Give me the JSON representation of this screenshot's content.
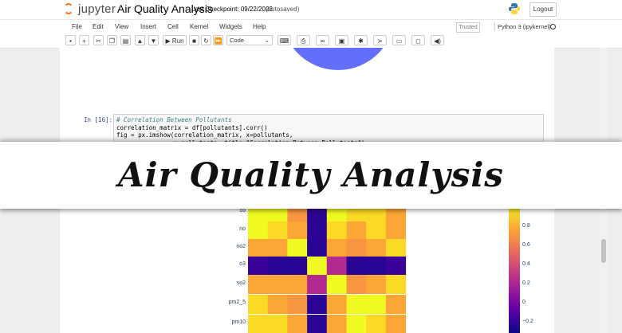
{
  "header": {
    "logo_text": "jupyter",
    "notebook_title": "Air Quality Analysis",
    "checkpoint": "Last Checkpoint: 09/22/2023",
    "autosave": "(autosaved)",
    "logout_label": "Logout"
  },
  "menu": {
    "items": [
      "File",
      "Edit",
      "View",
      "Insert",
      "Cell",
      "Kernel",
      "Widgets",
      "Help"
    ],
    "trusted_label": "Trusted",
    "kernel_label": "Python 3 (ipykernel)"
  },
  "toolbar": {
    "run_label": "Run",
    "cell_type": "Code"
  },
  "cell": {
    "prompt": "In [16]:",
    "lines": [
      "# Correlation Between Pollutants",
      "correlation_matrix = df[pollutants].corr()",
      "fig = px.imshow(correlation_matrix, x=pollutants,",
      "                y=pollutants, title=\"Correlation Between Pollutants\")"
    ]
  },
  "banner": {
    "text": "Air Quality Analysis"
  },
  "chart_data": {
    "type": "heatmap",
    "row_labels": [
      "co",
      "no",
      "no2",
      "o3",
      "so2",
      "pm2_5",
      "pm10"
    ],
    "colorbar_ticks": [
      "0.8",
      "0.6",
      "0.4",
      "0.2",
      "0",
      "−0.2"
    ],
    "colorscale": "plasma",
    "colors": {
      "yellow": "#f0f921",
      "light_yellow": "#fada24",
      "orange": "#fca636",
      "dark_orange": "#f89540",
      "magenta": "#b12a90",
      "navy": "#2a0593",
      "blue": "#3a049a"
    }
  }
}
